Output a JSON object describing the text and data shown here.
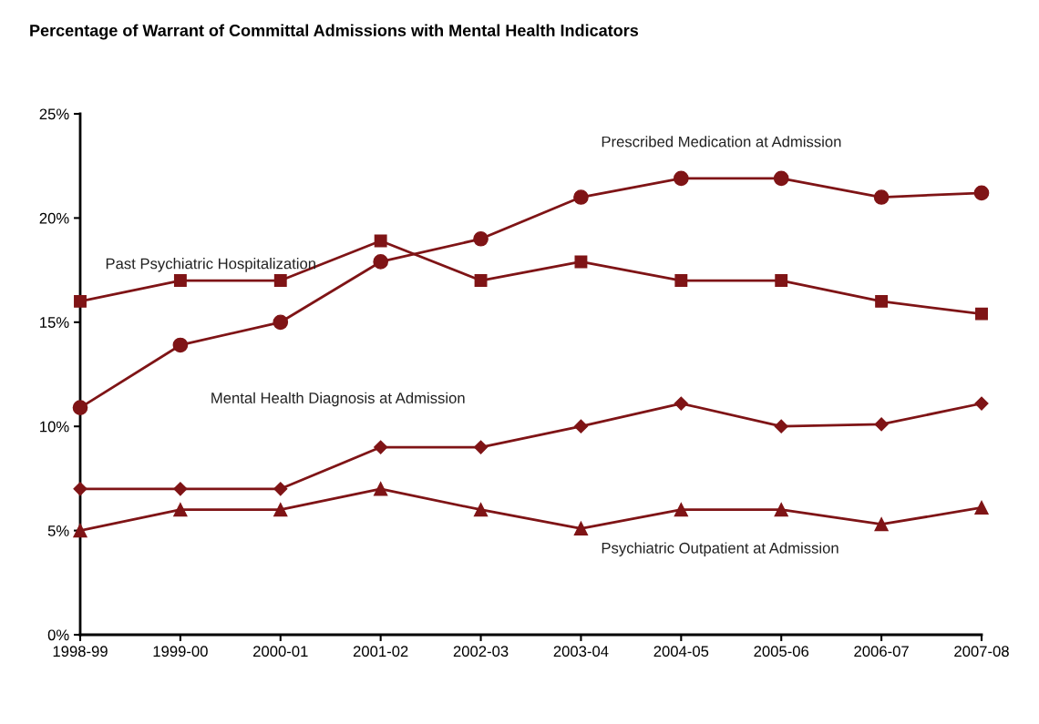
{
  "chart_data": {
    "type": "line",
    "title": "Percentage of Warrant of Committal Admissions with Mental Health Indicators",
    "categories": [
      "1998-99",
      "1999-00",
      "2000-01",
      "2001-02",
      "2002-03",
      "2003-04",
      "2004-05",
      "2005-06",
      "2006-07",
      "2007-08"
    ],
    "series": [
      {
        "name": "Prescribed Medication at Admission",
        "color": "#7f1416",
        "marker": "circle",
        "values": [
          10.9,
          13.9,
          15,
          17.9,
          19,
          21,
          21.9,
          21.9,
          21,
          21.2
        ]
      },
      {
        "name": "Past Psychiatric Hospitalization",
        "color": "#7f1416",
        "marker": "square",
        "values": [
          16,
          17,
          17,
          18.9,
          17,
          17.9,
          17,
          17,
          16,
          15.4
        ]
      },
      {
        "name": "Mental Health Diagnosis at Admission",
        "color": "#7f1416",
        "marker": "diamond",
        "values": [
          7,
          7,
          7,
          9,
          9,
          10,
          11.1,
          10,
          10.1,
          11.1
        ]
      },
      {
        "name": "Psychiatric Outpatient at Admission",
        "color": "#7f1416",
        "marker": "triangle",
        "values": [
          5,
          6,
          6,
          7,
          6,
          5.1,
          6,
          6,
          5.3,
          6.1
        ]
      }
    ],
    "ylim": [
      0,
      25
    ],
    "yticks": [
      {
        "value": 0,
        "label": "0%"
      },
      {
        "value": 5,
        "label": "5%"
      },
      {
        "value": 10,
        "label": "10%"
      },
      {
        "value": 15,
        "label": "15%"
      },
      {
        "value": 20,
        "label": "20%"
      },
      {
        "value": 25,
        "label": "25%"
      }
    ],
    "grid": false,
    "legend": false,
    "line_style": "solid"
  }
}
